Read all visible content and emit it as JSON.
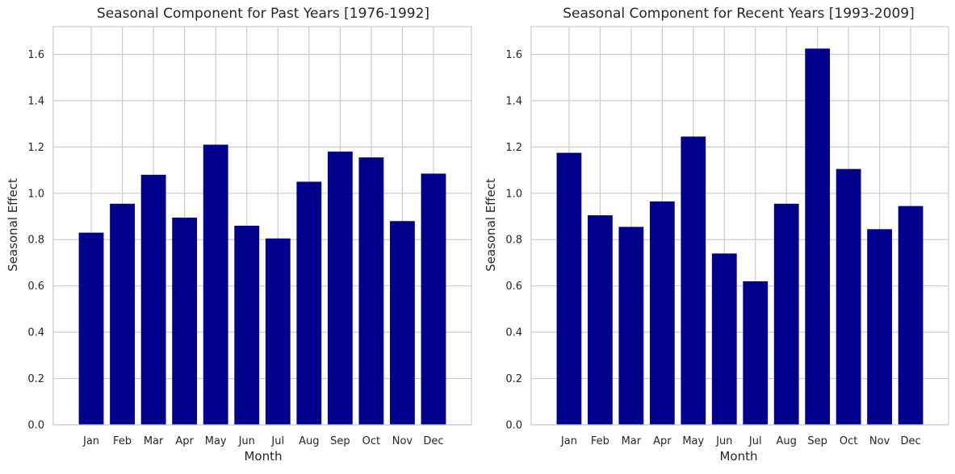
{
  "chart_data": [
    {
      "type": "bar",
      "title": "Seasonal Component for Past Years [1976-1992]",
      "xlabel": "Month",
      "ylabel": "Seasonal Effect",
      "categories": [
        "Jan",
        "Feb",
        "Mar",
        "Apr",
        "May",
        "Jun",
        "Jul",
        "Aug",
        "Sep",
        "Oct",
        "Nov",
        "Dec"
      ],
      "values": [
        0.83,
        0.955,
        1.08,
        0.895,
        1.21,
        0.86,
        0.805,
        1.05,
        1.18,
        1.155,
        0.88,
        1.085
      ],
      "ylim": [
        0,
        1.72
      ],
      "yticks": [
        "0.0",
        "0.2",
        "0.4",
        "0.6",
        "0.8",
        "1.0",
        "1.2",
        "1.4",
        "1.6"
      ],
      "grid": true,
      "bar_color": "#00008b"
    },
    {
      "type": "bar",
      "title": "Seasonal Component for Recent Years [1993-2009]",
      "xlabel": "Month",
      "ylabel": "Seasonal Effect",
      "categories": [
        "Jan",
        "Feb",
        "Mar",
        "Apr",
        "May",
        "Jun",
        "Jul",
        "Aug",
        "Sep",
        "Oct",
        "Nov",
        "Dec"
      ],
      "values": [
        1.175,
        0.905,
        0.855,
        0.965,
        1.245,
        0.74,
        0.62,
        0.955,
        1.625,
        1.105,
        0.845,
        0.945
      ],
      "ylim": [
        0,
        1.72
      ],
      "yticks": [
        "0.0",
        "0.2",
        "0.4",
        "0.6",
        "0.8",
        "1.0",
        "1.2",
        "1.4",
        "1.6"
      ],
      "grid": true,
      "bar_color": "#00008b"
    }
  ]
}
